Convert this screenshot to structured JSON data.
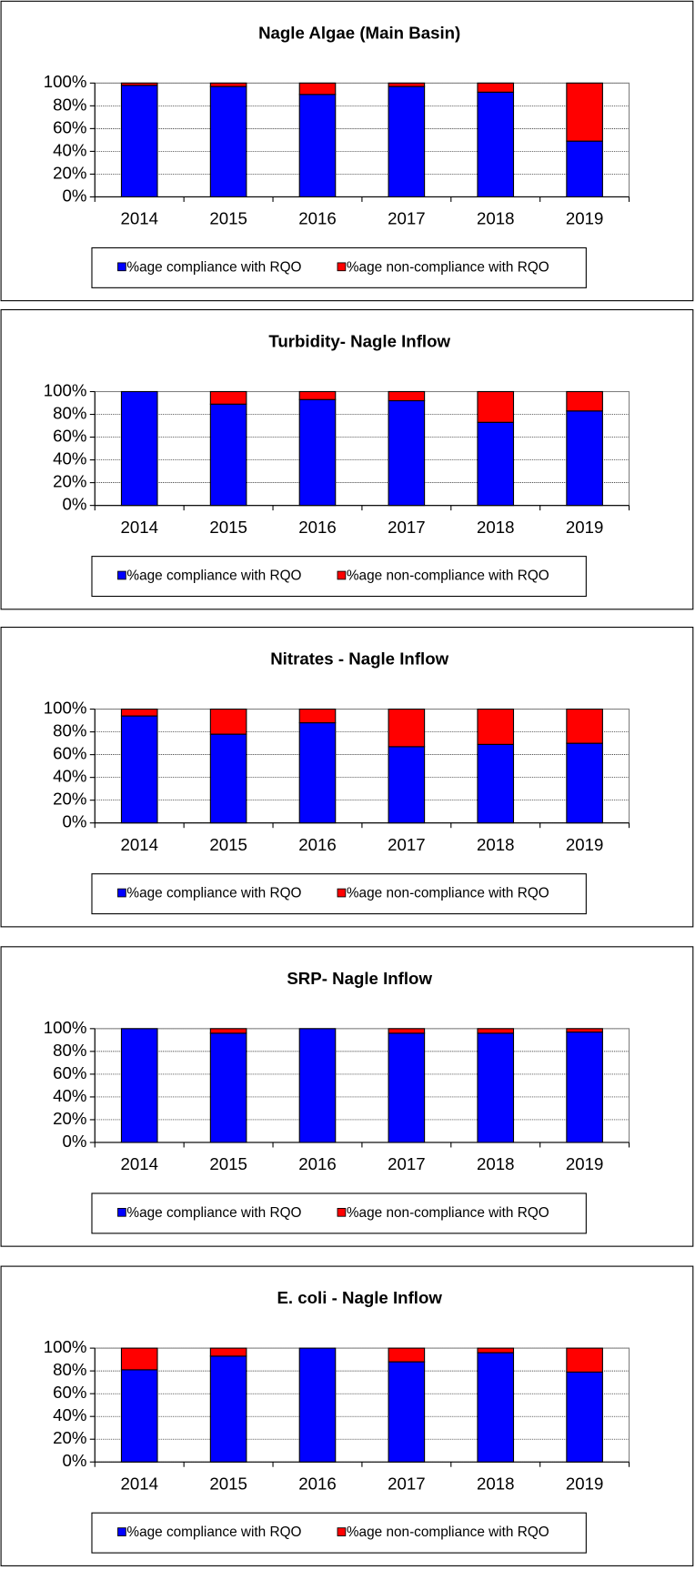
{
  "chart_data": [
    {
      "type": "stacked_bar",
      "title": "Nagle Algae (Main Basin)",
      "categories": [
        "2014",
        "2015",
        "2016",
        "2017",
        "2018",
        "2019"
      ],
      "series": [
        {
          "name": "%age compliance with RQO",
          "color": "#0000ff",
          "values": [
            98,
            97,
            90,
            97,
            92,
            49
          ]
        },
        {
          "name": "%age non-compliance with RQO",
          "color": "#ff0000",
          "values": [
            2,
            3,
            10,
            3,
            8,
            51
          ]
        }
      ],
      "ylim": [
        0,
        100
      ],
      "yticks": [
        {
          "value": 0,
          "label": "0%"
        },
        {
          "value": 20,
          "label": "20%"
        },
        {
          "value": 40,
          "label": "40%"
        },
        {
          "value": 60,
          "label": "60%"
        },
        {
          "value": 80,
          "label": "80%"
        },
        {
          "value": 100,
          "label": "100%"
        }
      ],
      "grid": true,
      "legend": "bottom"
    },
    {
      "type": "stacked_bar",
      "title": "Turbidity- Nagle Inflow",
      "categories": [
        "2014",
        "2015",
        "2016",
        "2017",
        "2018",
        "2019"
      ],
      "series": [
        {
          "name": "%age compliance with RQO",
          "color": "#0000ff",
          "values": [
            100,
            89,
            93,
            92,
            73,
            83
          ]
        },
        {
          "name": "%age non-compliance with RQO",
          "color": "#ff0000",
          "values": [
            0,
            11,
            7,
            8,
            27,
            17
          ]
        }
      ],
      "ylim": [
        0,
        100
      ],
      "yticks": [
        {
          "value": 0,
          "label": "0%"
        },
        {
          "value": 20,
          "label": "20%"
        },
        {
          "value": 40,
          "label": "40%"
        },
        {
          "value": 60,
          "label": "60%"
        },
        {
          "value": 80,
          "label": "80%"
        },
        {
          "value": 100,
          "label": "100%"
        }
      ],
      "grid": true,
      "legend": "bottom"
    },
    {
      "type": "stacked_bar",
      "title": "Nitrates - Nagle Inflow",
      "categories": [
        "2014",
        "2015",
        "2016",
        "2017",
        "2018",
        "2019"
      ],
      "series": [
        {
          "name": "%age compliance with RQO",
          "color": "#0000ff",
          "values": [
            94,
            78,
            88,
            67,
            69,
            70
          ]
        },
        {
          "name": "%age non-compliance with RQO",
          "color": "#ff0000",
          "values": [
            6,
            22,
            12,
            33,
            31,
            30
          ]
        }
      ],
      "ylim": [
        0,
        100
      ],
      "yticks": [
        {
          "value": 0,
          "label": "0%"
        },
        {
          "value": 20,
          "label": "20%"
        },
        {
          "value": 40,
          "label": "40%"
        },
        {
          "value": 60,
          "label": "60%"
        },
        {
          "value": 80,
          "label": "80%"
        },
        {
          "value": 100,
          "label": "100%"
        }
      ],
      "grid": true,
      "legend": "bottom"
    },
    {
      "type": "stacked_bar",
      "title": "SRP- Nagle Inflow",
      "categories": [
        "2014",
        "2015",
        "2016",
        "2017",
        "2018",
        "2019"
      ],
      "series": [
        {
          "name": "%age compliance with RQO",
          "color": "#0000ff",
          "values": [
            100,
            96,
            100,
            96,
            96,
            97
          ]
        },
        {
          "name": "%age non-compliance with RQO",
          "color": "#ff0000",
          "values": [
            0,
            4,
            0,
            4,
            4,
            3
          ]
        }
      ],
      "ylim": [
        0,
        100
      ],
      "yticks": [
        {
          "value": 0,
          "label": "0%"
        },
        {
          "value": 20,
          "label": "20%"
        },
        {
          "value": 40,
          "label": "40%"
        },
        {
          "value": 60,
          "label": "60%"
        },
        {
          "value": 80,
          "label": "80%"
        },
        {
          "value": 100,
          "label": "100%"
        }
      ],
      "grid": true,
      "legend": "bottom"
    },
    {
      "type": "stacked_bar",
      "title": "E. coli - Nagle Inflow",
      "categories": [
        "2014",
        "2015",
        "2016",
        "2017",
        "2018",
        "2019"
      ],
      "series": [
        {
          "name": "%age compliance with RQO",
          "color": "#0000ff",
          "values": [
            81,
            93,
            100,
            88,
            96,
            79
          ]
        },
        {
          "name": "%age non-compliance with RQO",
          "color": "#ff0000",
          "values": [
            19,
            7,
            0,
            12,
            4,
            21
          ]
        }
      ],
      "ylim": [
        0,
        100
      ],
      "yticks": [
        {
          "value": 0,
          "label": "0%"
        },
        {
          "value": 20,
          "label": "20%"
        },
        {
          "value": 40,
          "label": "40%"
        },
        {
          "value": 60,
          "label": "60%"
        },
        {
          "value": 80,
          "label": "80%"
        },
        {
          "value": 100,
          "label": "100%"
        }
      ],
      "grid": true,
      "legend": "bottom"
    }
  ]
}
